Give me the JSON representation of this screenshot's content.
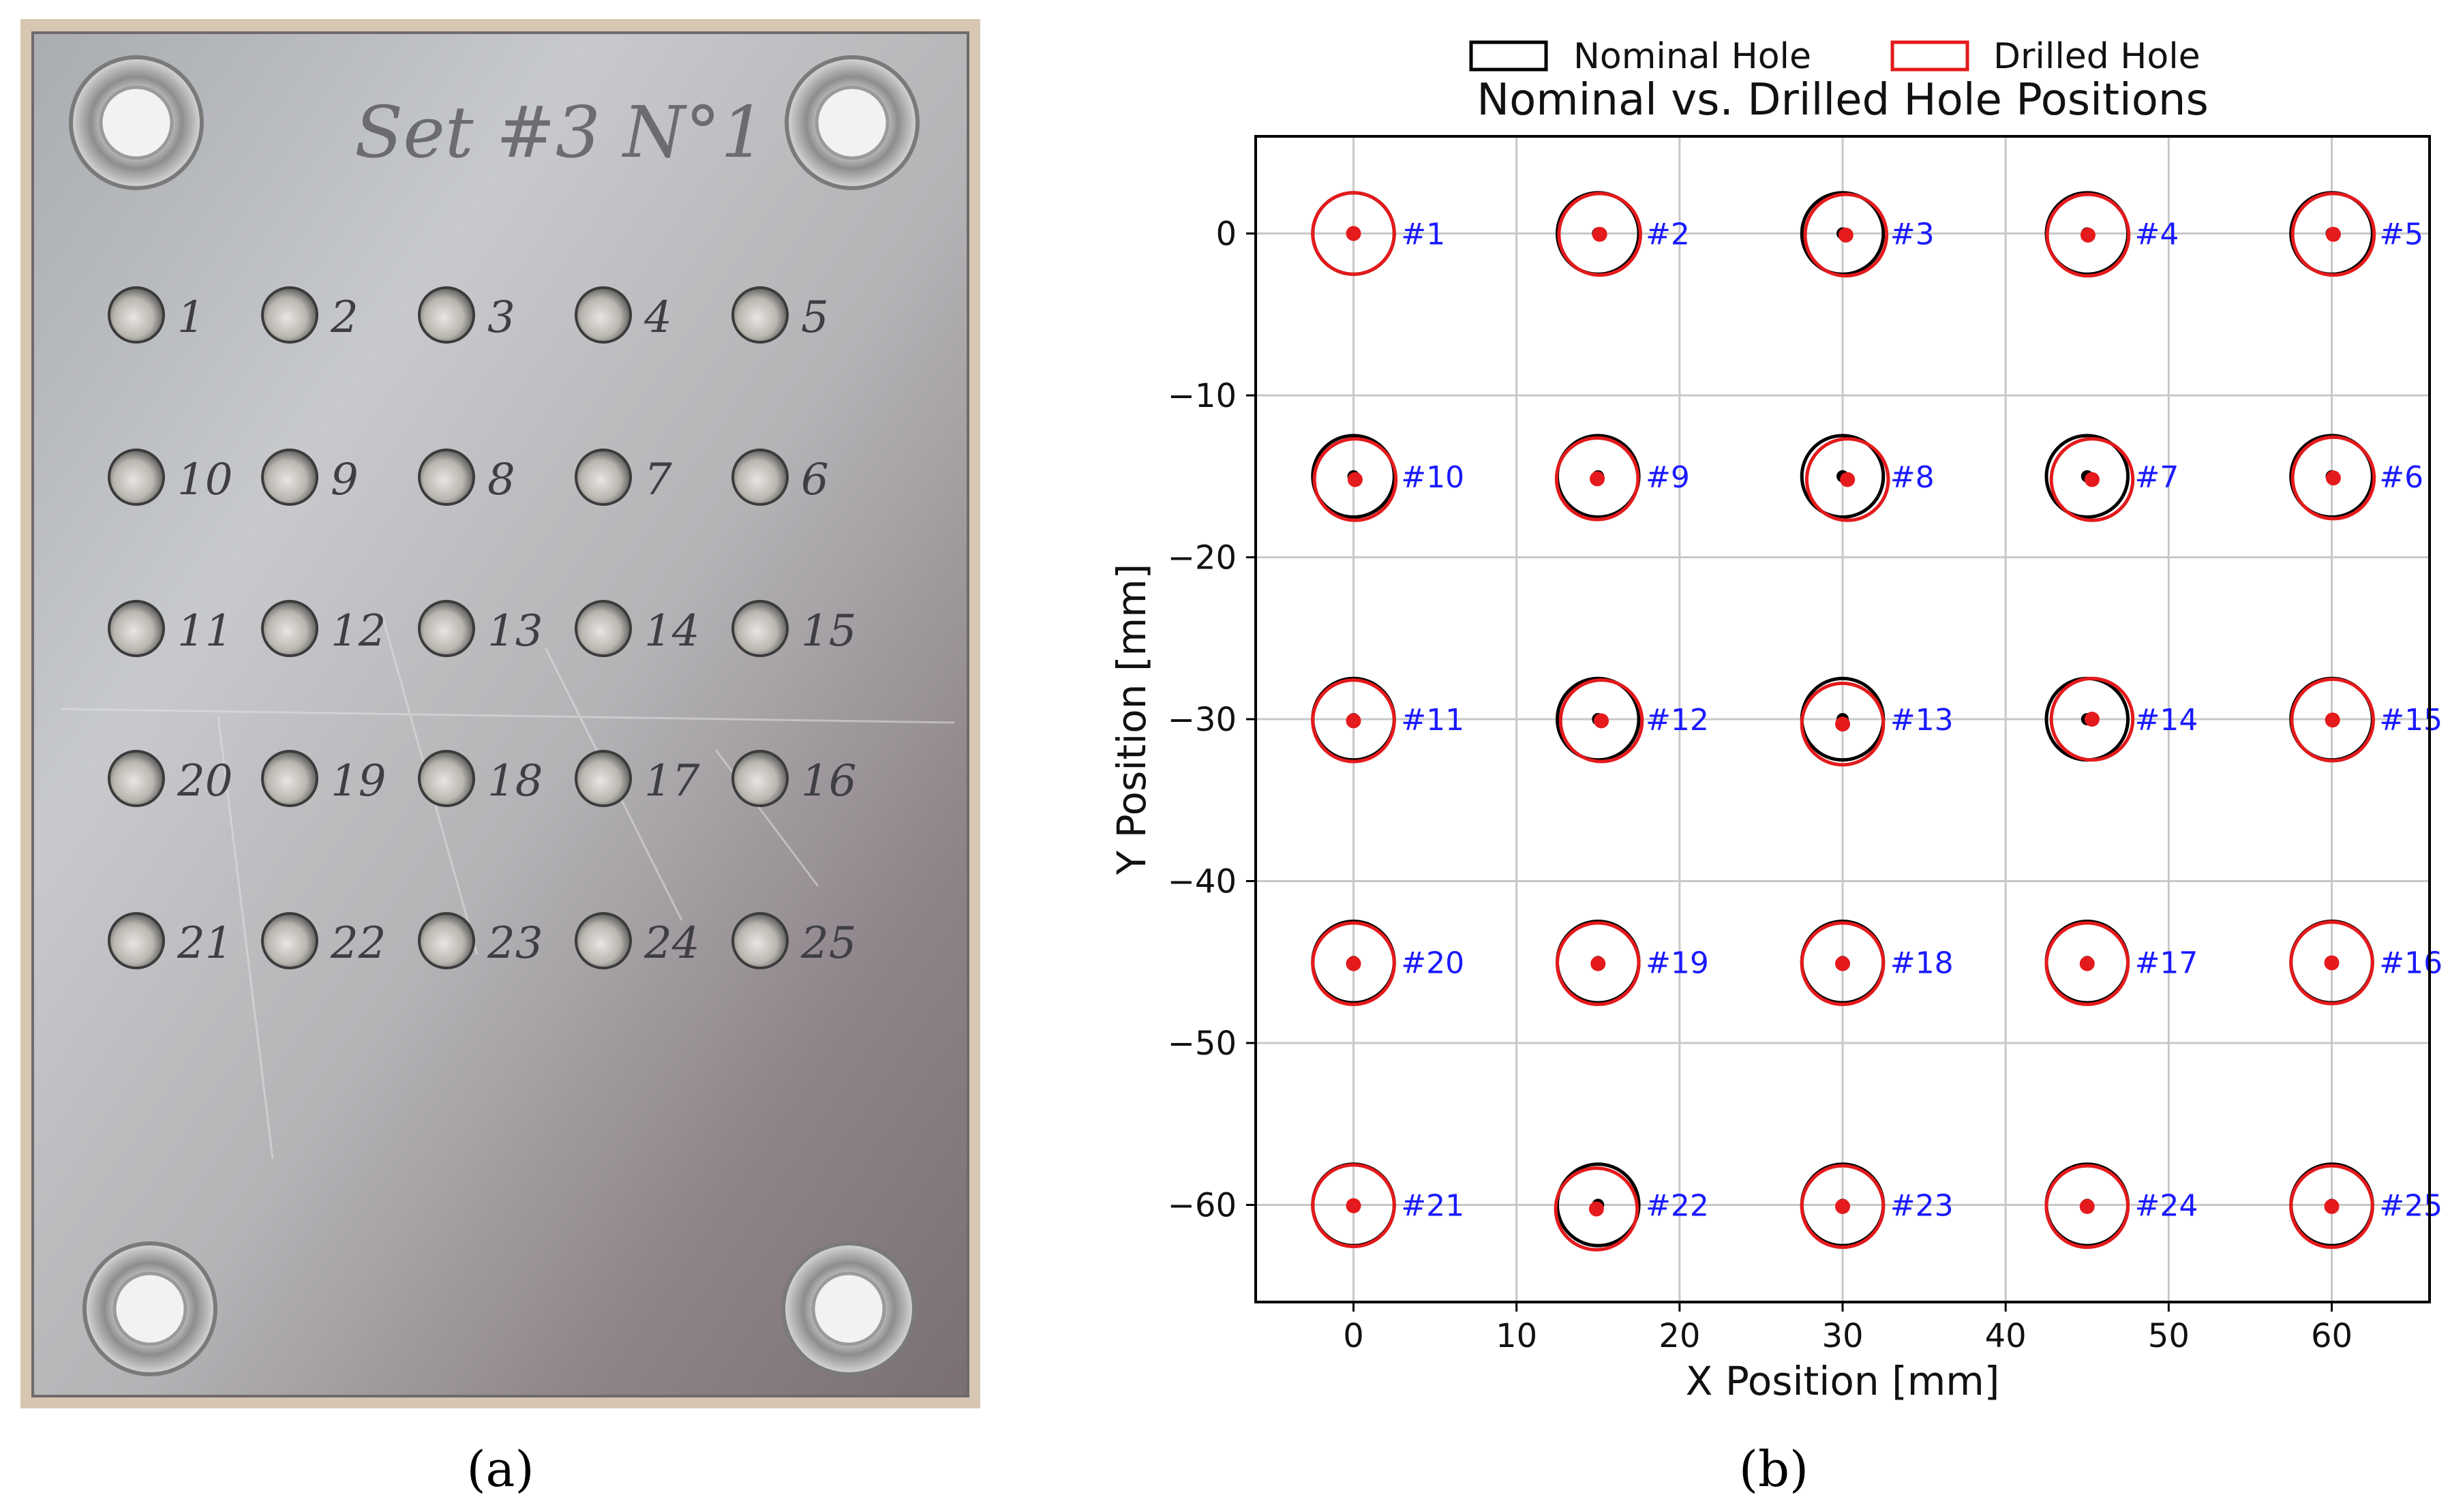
{
  "panels": {
    "a": {
      "caption": "(a)",
      "plate_label": "Set #3 N°1",
      "hole_numbers": [
        [
          "1",
          "2",
          "3",
          "4",
          "5"
        ],
        [
          "10",
          "9",
          "8",
          "7",
          "6"
        ],
        [
          "11",
          "12",
          "13",
          "14",
          "15"
        ],
        [
          "20",
          "19",
          "18",
          "17",
          "16"
        ],
        [
          "21",
          "22",
          "23",
          "24",
          "25"
        ]
      ]
    },
    "b": {
      "caption": "(b)"
    }
  },
  "chart_data": {
    "type": "scatter",
    "title": "Nominal vs. Drilled Hole Positions",
    "xlabel": "X Position [mm]",
    "ylabel": "Y Position [mm]",
    "xlim": [
      -6,
      66
    ],
    "ylim": [
      -66,
      6
    ],
    "xticks": [
      0,
      10,
      20,
      30,
      40,
      50,
      60
    ],
    "yticks": [
      0,
      -10,
      -20,
      -30,
      -40,
      -50,
      -60
    ],
    "grid": true,
    "legend": {
      "position": "top",
      "entries": [
        "Nominal Hole",
        "Drilled Hole"
      ]
    },
    "hole_radius_mm": 2.5,
    "colors": {
      "nominal": "#000000",
      "drilled": "#e41a1c",
      "label": "#1a1aff",
      "grid": "#c8c8c8"
    },
    "series": [
      {
        "name": "Nominal Hole",
        "points": [
          {
            "x": 0,
            "y": 0
          },
          {
            "x": 15,
            "y": 0
          },
          {
            "x": 30,
            "y": 0
          },
          {
            "x": 45,
            "y": 0
          },
          {
            "x": 60,
            "y": 0
          },
          {
            "x": 0,
            "y": -15
          },
          {
            "x": 15,
            "y": -15
          },
          {
            "x": 30,
            "y": -15
          },
          {
            "x": 45,
            "y": -15
          },
          {
            "x": 60,
            "y": -15
          },
          {
            "x": 0,
            "y": -30
          },
          {
            "x": 15,
            "y": -30
          },
          {
            "x": 30,
            "y": -30
          },
          {
            "x": 45,
            "y": -30
          },
          {
            "x": 60,
            "y": -30
          },
          {
            "x": 0,
            "y": -45
          },
          {
            "x": 15,
            "y": -45
          },
          {
            "x": 30,
            "y": -45
          },
          {
            "x": 45,
            "y": -45
          },
          {
            "x": 60,
            "y": -45
          },
          {
            "x": 0,
            "y": -60
          },
          {
            "x": 15,
            "y": -60
          },
          {
            "x": 30,
            "y": -60
          },
          {
            "x": 45,
            "y": -60
          },
          {
            "x": 60,
            "y": -60
          }
        ]
      },
      {
        "name": "Drilled Hole",
        "points": [
          {
            "x": 0,
            "y": 0
          },
          {
            "x": 15.1,
            "y": -0.05
          },
          {
            "x": 30.2,
            "y": -0.1
          },
          {
            "x": 45.05,
            "y": -0.1
          },
          {
            "x": 60.1,
            "y": -0.05
          },
          {
            "x": 0.1,
            "y": -15.2
          },
          {
            "x": 14.95,
            "y": -15.15
          },
          {
            "x": 30.3,
            "y": -15.2
          },
          {
            "x": 45.3,
            "y": -15.2
          },
          {
            "x": 60.1,
            "y": -15.1
          },
          {
            "x": 0,
            "y": -30.1
          },
          {
            "x": 15.2,
            "y": -30.1
          },
          {
            "x": 30,
            "y": -30.3
          },
          {
            "x": 45.3,
            "y": -30
          },
          {
            "x": 60.05,
            "y": -30.05
          },
          {
            "x": 0,
            "y": -45.1
          },
          {
            "x": 15,
            "y": -45.1
          },
          {
            "x": 30,
            "y": -45.1
          },
          {
            "x": 45,
            "y": -45.1
          },
          {
            "x": 60,
            "y": -45.05
          },
          {
            "x": 0,
            "y": -60.05
          },
          {
            "x": 14.9,
            "y": -60.25
          },
          {
            "x": 30,
            "y": -60.1
          },
          {
            "x": 45,
            "y": -60.1
          },
          {
            "x": 60,
            "y": -60.1
          }
        ]
      }
    ],
    "annotations": [
      {
        "text": "#1",
        "x": 0,
        "y": 0
      },
      {
        "text": "#2",
        "x": 15,
        "y": 0
      },
      {
        "text": "#3",
        "x": 30,
        "y": 0
      },
      {
        "text": "#4",
        "x": 45,
        "y": 0
      },
      {
        "text": "#5",
        "x": 60,
        "y": 0
      },
      {
        "text": "#10",
        "x": 0,
        "y": -15
      },
      {
        "text": "#9",
        "x": 15,
        "y": -15
      },
      {
        "text": "#8",
        "x": 30,
        "y": -15
      },
      {
        "text": "#7",
        "x": 45,
        "y": -15
      },
      {
        "text": "#6",
        "x": 60,
        "y": -15
      },
      {
        "text": "#11",
        "x": 0,
        "y": -30
      },
      {
        "text": "#12",
        "x": 15,
        "y": -30
      },
      {
        "text": "#13",
        "x": 30,
        "y": -30
      },
      {
        "text": "#14",
        "x": 45,
        "y": -30
      },
      {
        "text": "#15",
        "x": 60,
        "y": -30
      },
      {
        "text": "#20",
        "x": 0,
        "y": -45
      },
      {
        "text": "#19",
        "x": 15,
        "y": -45
      },
      {
        "text": "#18",
        "x": 30,
        "y": -45
      },
      {
        "text": "#17",
        "x": 45,
        "y": -45
      },
      {
        "text": "#16",
        "x": 60,
        "y": -45
      },
      {
        "text": "#21",
        "x": 0,
        "y": -60
      },
      {
        "text": "#22",
        "x": 15,
        "y": -60
      },
      {
        "text": "#23",
        "x": 30,
        "y": -60
      },
      {
        "text": "#24",
        "x": 45,
        "y": -60
      },
      {
        "text": "#25",
        "x": 60,
        "y": -60
      }
    ]
  }
}
